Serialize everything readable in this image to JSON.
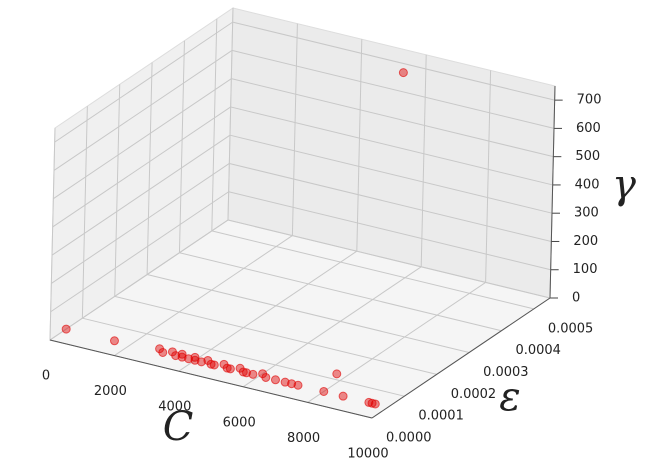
{
  "chart_data": {
    "type": "scatter3d",
    "xlabel": "C",
    "ylabel": "ε",
    "zlabel": "γ",
    "color": "#e00000",
    "xlim": [
      0,
      10000
    ],
    "ylim": [
      0,
      0.00055
    ],
    "zlim": [
      0,
      750
    ],
    "xticks": [
      0,
      2000,
      4000,
      6000,
      8000,
      10000
    ],
    "yticks": [
      {
        "value": 0,
        "label": "0.0000"
      },
      {
        "value": 0.0001,
        "label": "0.0001"
      },
      {
        "value": 0.0002,
        "label": "0.0002"
      },
      {
        "value": 0.0003,
        "label": "0.0003"
      },
      {
        "value": 0.0004,
        "label": "0.0004"
      },
      {
        "value": 0.0005,
        "label": "0.0005"
      }
    ],
    "zticks": [
      0,
      100,
      200,
      300,
      400,
      500,
      600,
      700
    ],
    "x": [
      0,
      1500,
      2800,
      3000,
      3200,
      3400,
      3500,
      3600,
      3800,
      3900,
      4000,
      4200,
      4300,
      4500,
      4600,
      4800,
      5000,
      5100,
      5300,
      5500,
      5600,
      5800,
      6000,
      6200,
      6500,
      6800,
      7000,
      7200,
      7700,
      8000,
      8600,
      9400,
      9500,
      9600,
      5800
    ],
    "y": [
      5e-05,
      5e-05,
      6e-05,
      5e-05,
      6e-05,
      5e-05,
      6e-05,
      5e-05,
      5e-05,
      6e-05,
      5e-05,
      5e-05,
      6e-05,
      5e-05,
      5e-05,
      6e-05,
      5e-05,
      5e-05,
      6e-05,
      5e-05,
      5e-05,
      5e-05,
      6e-05,
      5e-05,
      5e-05,
      5e-05,
      5e-05,
      5e-05,
      0.00012,
      5e-05,
      5e-05,
      5e-05,
      5e-05,
      5e-05,
      0.0005
    ],
    "z": [
      0,
      0,
      0,
      0,
      0,
      0,
      0,
      0,
      0,
      0,
      0,
      0,
      0,
      0,
      0,
      0,
      0,
      0,
      0,
      0,
      0,
      0,
      0,
      0,
      0,
      0,
      0,
      0,
      0,
      0,
      0,
      0,
      0,
      0,
      720
    ]
  }
}
